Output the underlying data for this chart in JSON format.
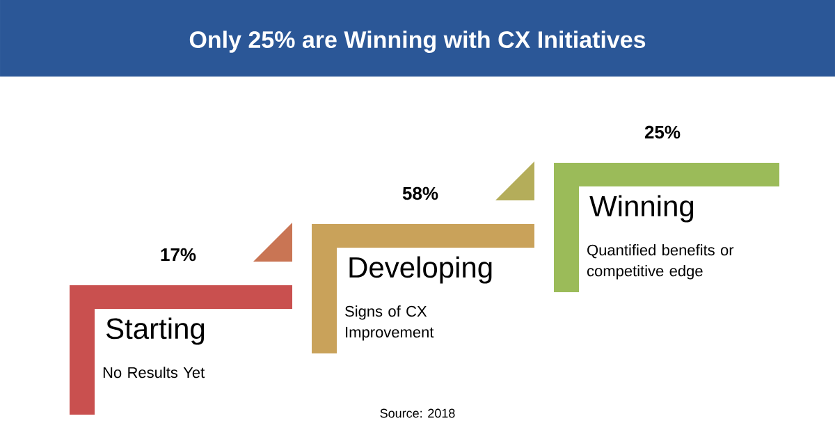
{
  "chart_data": {
    "type": "other",
    "title": "Only 25% are Winning with CX Initiatives",
    "categories": [
      "Starting",
      "Developing",
      "Winning"
    ],
    "colors": [
      "#c9504f",
      "#c9a25a",
      "#9bbb59"
    ],
    "values": [
      17,
      58,
      25
    ],
    "ylabel": "%",
    "data_labels": true,
    "annotations": [
      "No Results Yet",
      "Signs of CX Improvement",
      "Quantified benefits or competitive edge",
      "Source: 2018"
    ]
  }
}
